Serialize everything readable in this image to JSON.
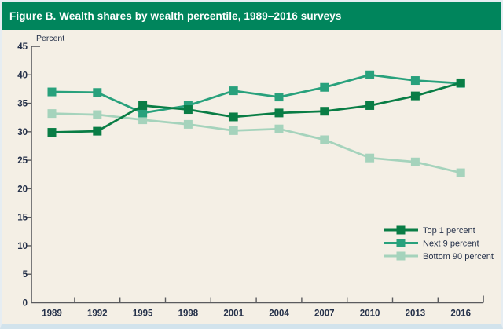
{
  "figure": {
    "title": "Figure B. Wealth shares by wealth percentile, 1989–2016 surveys"
  },
  "colors": {
    "header_bg": "#00855c",
    "header_text": "#ffffff",
    "canvas_bg": "#f4efe5",
    "axis": "#5a5b5e",
    "tick_label": "#243049",
    "outer_border": "#d2e3ec"
  },
  "chart_data": {
    "type": "line",
    "title": "Figure B. Wealth shares by wealth percentile, 1989–2016 surveys",
    "ylabel_unit": "Percent",
    "xlabel": "",
    "x": [
      1989,
      1992,
      1995,
      1998,
      2001,
      2004,
      2007,
      2010,
      2013,
      2016
    ],
    "series": [
      {
        "name": "Top 1 percent",
        "color": "#097d45",
        "values": [
          29.9,
          30.1,
          34.6,
          33.9,
          32.6,
          33.3,
          33.6,
          34.6,
          36.3,
          38.6
        ]
      },
      {
        "name": "Next 9 percent",
        "color": "#28a17c",
        "values": [
          37.0,
          36.9,
          33.3,
          34.6,
          37.2,
          36.1,
          37.8,
          40.0,
          39.0,
          38.5
        ]
      },
      {
        "name": "Bottom 90 percent",
        "color": "#a5d3bc",
        "values": [
          33.2,
          33.0,
          32.1,
          31.3,
          30.2,
          30.5,
          28.6,
          25.4,
          24.7,
          22.8
        ]
      }
    ],
    "ylim": [
      0,
      45
    ],
    "ytick_step": 5,
    "marker": "square",
    "grid": false,
    "legend_position": "lower-right"
  }
}
